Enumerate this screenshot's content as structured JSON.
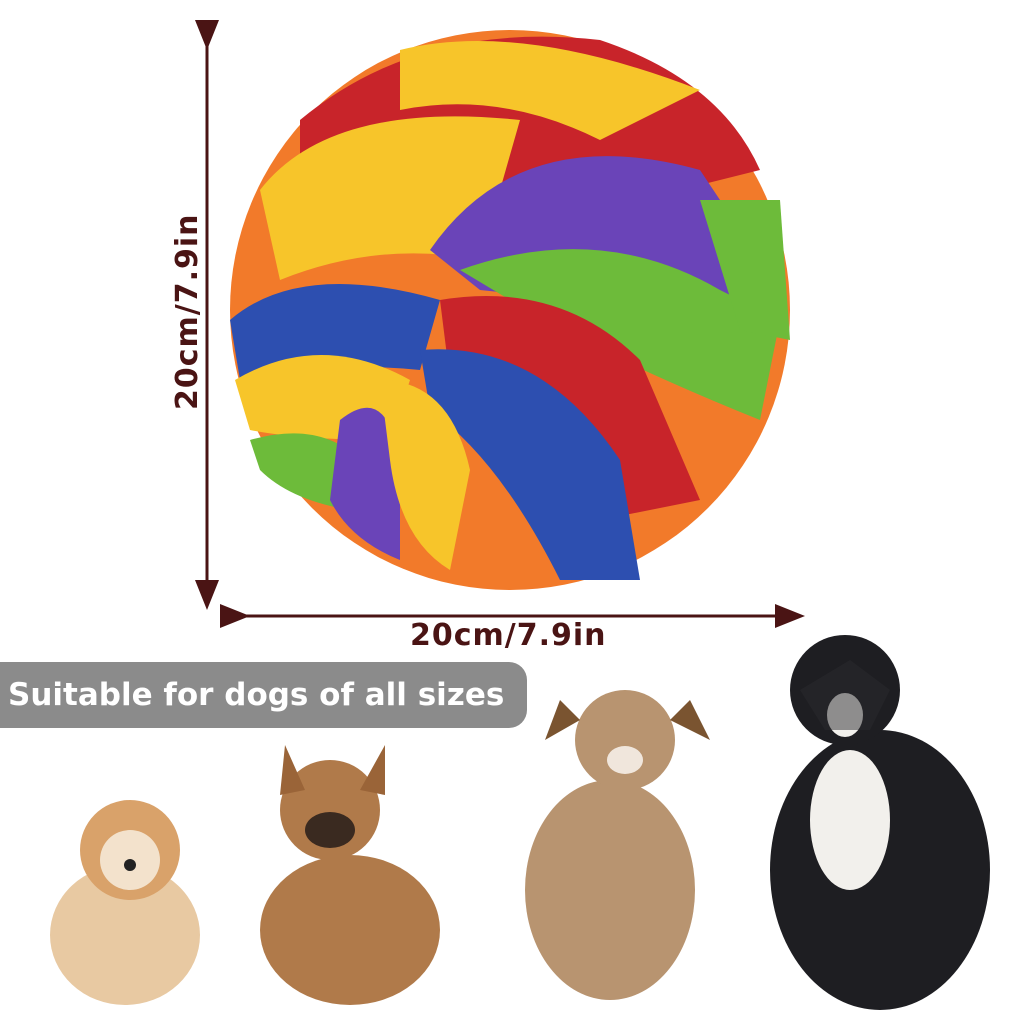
{
  "product": {
    "height_label": "20cm/7.9in",
    "width_label": "20cm/7.9in",
    "badge_text": "Suitable for dogs of all sizes",
    "arrow_color": "#4a1414",
    "badge_color": "#8b8b8b",
    "ball_colors": [
      "#f7c52a",
      "#c8242a",
      "#6a44b8",
      "#2d4fb0",
      "#6dbb3a",
      "#f27a2a"
    ],
    "dogs": [
      "small-fluffy-dog",
      "french-bulldog",
      "puppy",
      "border-collie"
    ]
  }
}
